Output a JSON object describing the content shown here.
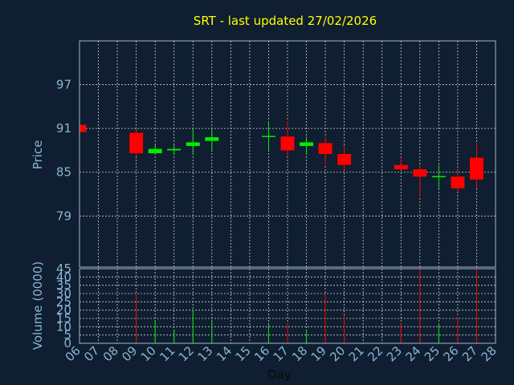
{
  "title": "SRT - last updated 27/02/2026",
  "chart_data": [
    {
      "type": "candlestick",
      "ylabel": "Price",
      "ylim": [
        72,
        103
      ],
      "yticks": [
        79,
        85,
        91,
        97
      ],
      "grid": true,
      "colors": {
        "up": "#00ee00",
        "down": "#ff0000",
        "background": "#0f1e30",
        "text": "#8ab4d6",
        "title": "#ffff00"
      },
      "candles": [
        {
          "day": 6,
          "open": 91.5,
          "high": 91.5,
          "low": 90.5,
          "close": 90.5
        },
        {
          "day": 9,
          "open": 90.4,
          "high": 91.0,
          "low": 87.2,
          "close": 87.6
        },
        {
          "day": 10,
          "open": 87.6,
          "high": 88.7,
          "low": 87.4,
          "close": 88.2
        },
        {
          "day": 11,
          "open": 88.0,
          "high": 88.7,
          "low": 87.4,
          "close": 88.2
        },
        {
          "day": 12,
          "open": 88.6,
          "high": 91.0,
          "low": 87.6,
          "close": 89.1
        },
        {
          "day": 13,
          "open": 89.3,
          "high": 91.0,
          "low": 88.0,
          "close": 89.8
        },
        {
          "day": 16,
          "open": 89.8,
          "high": 92.0,
          "low": 88.0,
          "close": 89.9
        },
        {
          "day": 17,
          "open": 89.9,
          "high": 92.0,
          "low": 87.2,
          "close": 88.0
        },
        {
          "day": 18,
          "open": 88.6,
          "high": 89.9,
          "low": 87.4,
          "close": 89.1
        },
        {
          "day": 19,
          "open": 89.0,
          "high": 89.9,
          "low": 86.0,
          "close": 87.5
        },
        {
          "day": 20,
          "open": 87.5,
          "high": 88.7,
          "low": 85.3,
          "close": 86.0
        },
        {
          "day": 23,
          "open": 86.0,
          "high": 87.0,
          "low": 85.3,
          "close": 85.4
        },
        {
          "day": 24,
          "open": 85.4,
          "high": 86.0,
          "low": 81.6,
          "close": 84.4
        },
        {
          "day": 25,
          "open": 84.3,
          "high": 86.0,
          "low": 82.8,
          "close": 84.4
        },
        {
          "day": 26,
          "open": 84.4,
          "high": 85.3,
          "low": 82.4,
          "close": 82.8
        },
        {
          "day": 27,
          "open": 87.0,
          "high": 89.0,
          "low": 82.8,
          "close": 84.0
        }
      ]
    },
    {
      "type": "bar",
      "xlabel": "Day",
      "ylabel": "Volume (0000)",
      "ylim": [
        0,
        45
      ],
      "yticks": [
        0,
        5,
        10,
        15,
        20,
        25,
        30,
        35,
        40,
        45
      ],
      "x_tick_labels": [
        "06",
        "07",
        "08",
        "09",
        "10",
        "11",
        "12",
        "13",
        "14",
        "15",
        "16",
        "17",
        "18",
        "19",
        "20",
        "21",
        "22",
        "23",
        "24",
        "25",
        "26",
        "27",
        "28"
      ],
      "volumes": [
        {
          "day": 9,
          "value": 30,
          "color": "#ff0000"
        },
        {
          "day": 10,
          "value": 14,
          "color": "#00ee00"
        },
        {
          "day": 11,
          "value": 8,
          "color": "#00ee00"
        },
        {
          "day": 12,
          "value": 20,
          "color": "#00ee00"
        },
        {
          "day": 13,
          "value": 13,
          "color": "#00ee00"
        },
        {
          "day": 16,
          "value": 11,
          "color": "#00ee00"
        },
        {
          "day": 17,
          "value": 12,
          "color": "#ff0000"
        },
        {
          "day": 18,
          "value": 7,
          "color": "#00ee00"
        },
        {
          "day": 19,
          "value": 30,
          "color": "#ff0000"
        },
        {
          "day": 20,
          "value": 17,
          "color": "#ff0000"
        },
        {
          "day": 23,
          "value": 12,
          "color": "#ff0000"
        },
        {
          "day": 24,
          "value": 45,
          "color": "#ff0000"
        },
        {
          "day": 25,
          "value": 12,
          "color": "#00ee00"
        },
        {
          "day": 26,
          "value": 16,
          "color": "#ff0000"
        },
        {
          "day": 27,
          "value": 45,
          "color": "#ff0000"
        }
      ]
    }
  ]
}
